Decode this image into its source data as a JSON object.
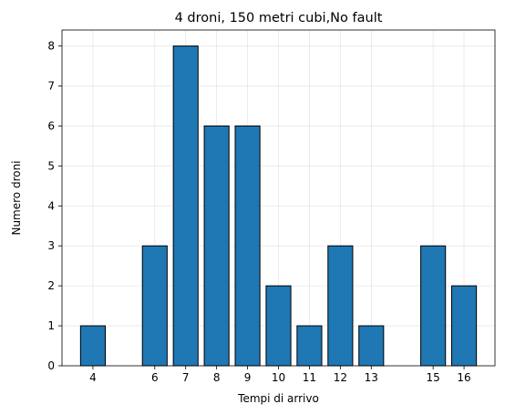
{
  "chart_data": {
    "type": "bar",
    "title": "4 droni, 150 metri cubi,No fault",
    "xlabel": "Tempi di arrivo",
    "ylabel": "Numero droni",
    "x": [
      4,
      6,
      7,
      8,
      9,
      10,
      11,
      12,
      13,
      15,
      16
    ],
    "values": [
      1,
      3,
      8,
      6,
      6,
      2,
      1,
      3,
      1,
      3,
      2
    ],
    "xticks": [
      4,
      6,
      7,
      8,
      9,
      10,
      11,
      12,
      13,
      15,
      16
    ],
    "yticks": [
      0,
      1,
      2,
      3,
      4,
      5,
      6,
      7,
      8
    ],
    "xlim": [
      3,
      17
    ],
    "ylim": [
      0,
      8.4
    ],
    "grid": true,
    "bar_color": "#1f77b4",
    "edge_color": "#000000"
  }
}
